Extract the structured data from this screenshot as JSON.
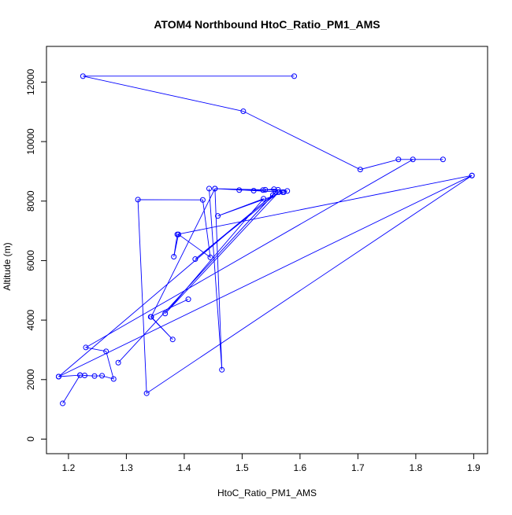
{
  "chart_data": {
    "type": "line",
    "title": "ATOM4 Northbound HtoC_Ratio_PM1_AMS",
    "xlabel": "HtoC_Ratio_PM1_AMS",
    "ylabel": "Altitude (m)",
    "xlim": [
      1.162,
      1.924
    ],
    "ylim": [
      -490,
      13200
    ],
    "xticks": [
      1.2,
      1.3,
      1.4,
      1.5,
      1.6,
      1.7,
      1.8,
      1.9
    ],
    "xtick_labels": [
      "1.2",
      "1.3",
      "1.4",
      "1.5",
      "1.6",
      "1.7",
      "1.8",
      "1.9"
    ],
    "yticks": [
      0,
      2000,
      4000,
      6000,
      8000,
      10000,
      12000
    ],
    "ytick_labels": [
      "0",
      "2000",
      "4000",
      "6000",
      "8000",
      "10000",
      "12000"
    ],
    "grid": false,
    "legend": "none",
    "series": [
      {
        "color": "#0000ff",
        "marker": "open-circle",
        "points": [
          {
            "x": 1.59,
            "y": 12200
          },
          {
            "x": 1.225,
            "y": 12200
          },
          {
            "x": 1.502,
            "y": 11020
          },
          {
            "x": 1.704,
            "y": 9060
          },
          {
            "x": 1.77,
            "y": 9400
          },
          {
            "x": 1.847,
            "y": 9400
          },
          {
            "x": 1.795,
            "y": 9400
          },
          {
            "x": 1.23,
            "y": 3080
          },
          {
            "x": 1.265,
            "y": 2950
          },
          {
            "x": 1.278,
            "y": 2020
          },
          {
            "x": 1.258,
            "y": 2130
          },
          {
            "x": 1.245,
            "y": 2120
          },
          {
            "x": 1.228,
            "y": 2140
          },
          {
            "x": 1.22,
            "y": 2150
          },
          {
            "x": 1.19,
            "y": 1200
          },
          {
            "x": 1.22,
            "y": 2150
          },
          {
            "x": 1.183,
            "y": 2100
          },
          {
            "x": 1.897,
            "y": 8860
          },
          {
            "x": 1.388,
            "y": 6880
          },
          {
            "x": 1.382,
            "y": 6130
          },
          {
            "x": 1.39,
            "y": 6880
          },
          {
            "x": 1.445,
            "y": 6110
          },
          {
            "x": 1.432,
            "y": 8040
          },
          {
            "x": 1.32,
            "y": 8050
          },
          {
            "x": 1.335,
            "y": 1540
          },
          {
            "x": 1.897,
            "y": 8860
          }
        ]
      },
      {
        "color": "#0000ff",
        "marker": "open-circle",
        "points": [
          {
            "x": 1.407,
            "y": 4700
          },
          {
            "x": 1.342,
            "y": 4110
          },
          {
            "x": 1.38,
            "y": 3350
          },
          {
            "x": 1.343,
            "y": 4110
          },
          {
            "x": 1.453,
            "y": 8420
          },
          {
            "x": 1.465,
            "y": 2330
          },
          {
            "x": 1.443,
            "y": 8420
          }
        ]
      },
      {
        "color": "#0000ff",
        "marker": "open-circle",
        "points": [
          {
            "x": 1.495,
            "y": 8370
          },
          {
            "x": 1.536,
            "y": 8370
          },
          {
            "x": 1.562,
            "y": 8380
          },
          {
            "x": 1.57,
            "y": 8300
          },
          {
            "x": 1.578,
            "y": 8340
          },
          {
            "x": 1.555,
            "y": 8400
          },
          {
            "x": 1.52,
            "y": 8350
          },
          {
            "x": 1.54,
            "y": 8380
          },
          {
            "x": 1.453,
            "y": 8420
          },
          {
            "x": 1.572,
            "y": 8300
          },
          {
            "x": 1.458,
            "y": 7500
          },
          {
            "x": 1.537,
            "y": 8080
          },
          {
            "x": 1.367,
            "y": 4220
          },
          {
            "x": 1.563,
            "y": 8300
          },
          {
            "x": 1.419,
            "y": 6050
          },
          {
            "x": 1.553,
            "y": 8200
          },
          {
            "x": 1.286,
            "y": 2570
          },
          {
            "x": 1.558,
            "y": 8300
          },
          {
            "x": 1.183,
            "y": 2100
          }
        ]
      }
    ]
  }
}
